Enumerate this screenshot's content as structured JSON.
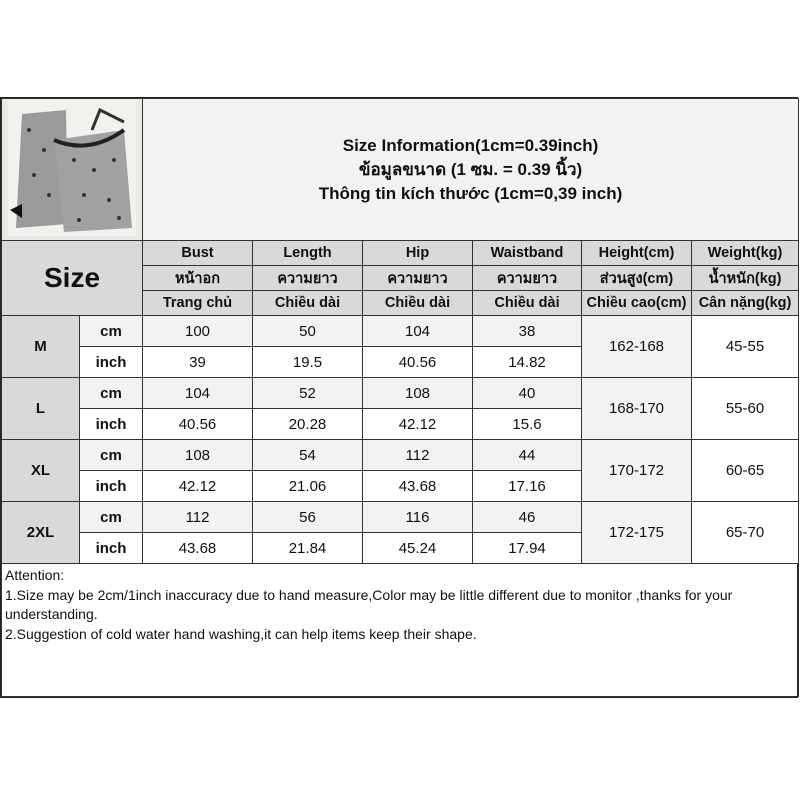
{
  "title": {
    "line1": "Size Information(1cm=0.39inch)",
    "line2": "ข้อมูลขนาด (1 ซม. = 0.39 นิ้ว)",
    "line3": "Thông tin kích thước (1cm=0,39 inch)"
  },
  "size_label": "Size",
  "columns": [
    {
      "en": "Bust",
      "th": "หน้าอก",
      "vi": "Trang chủ"
    },
    {
      "en": "Length",
      "th": "ความยาว",
      "vi": "Chiều dài"
    },
    {
      "en": "Hip",
      "th": "ความยาว",
      "vi": "Chiều dài"
    },
    {
      "en": "Waistband",
      "th": "ความยาว",
      "vi": "Chiều dài"
    },
    {
      "en": "Height(cm)",
      "th": "ส่วนสูง(cm)",
      "vi": "Chiều cao(cm)"
    },
    {
      "en": "Weight(kg)",
      "th": "น้ำหนัก(kg)",
      "vi": "Cân nặng(kg)"
    }
  ],
  "units": {
    "cm": "cm",
    "inch": "inch"
  },
  "sizes": [
    {
      "size": "M",
      "cm": [
        "100",
        "50",
        "104",
        "38"
      ],
      "inch": [
        "39",
        "19.5",
        "40.56",
        "14.82"
      ],
      "height": "162-168",
      "weight": "45-55"
    },
    {
      "size": "L",
      "cm": [
        "104",
        "52",
        "108",
        "40"
      ],
      "inch": [
        "40.56",
        "20.28",
        "42.12",
        "15.6"
      ],
      "height": "168-170",
      "weight": "55-60"
    },
    {
      "size": "XL",
      "cm": [
        "108",
        "54",
        "112",
        "44"
      ],
      "inch": [
        "42.12",
        "21.06",
        "43.68",
        "17.16"
      ],
      "height": "170-172",
      "weight": "60-65"
    },
    {
      "size": "2XL",
      "cm": [
        "112",
        "56",
        "116",
        "46"
      ],
      "inch": [
        "43.68",
        "21.84",
        "45.24",
        "17.94"
      ],
      "height": "172-175",
      "weight": "65-70"
    }
  ],
  "notes": {
    "heading": "Attention:",
    "items": [
      "1.Size may be 2cm/1inch inaccuracy due to hand measure,Color may be little different due to monitor ,thanks for your understanding.",
      "2.Suggestion of cold water hand washing,it can help items keep their shape."
    ]
  }
}
